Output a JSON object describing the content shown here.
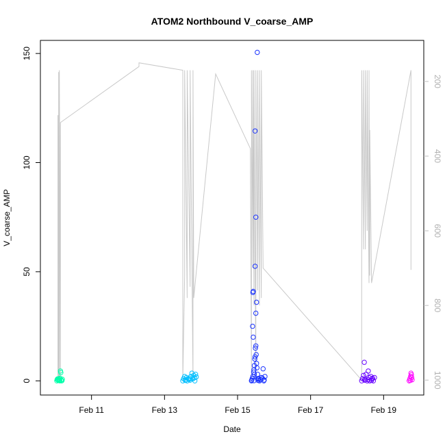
{
  "chart_data": {
    "type": "scatter",
    "title": "ATOM2 Northbound V_coarse_AMP",
    "xlabel": "Date",
    "ylabel": "V_coarse_AMP",
    "x_tick_labels": [
      "Feb 11",
      "Feb 13",
      "Feb 15",
      "Feb 17",
      "Feb 19"
    ],
    "x_tick_days": [
      11,
      13,
      15,
      17,
      19
    ],
    "xlim_days": [
      9.6,
      20.1
    ],
    "y_ticks": [
      0,
      50,
      100,
      150
    ],
    "ylim": [
      -6.5,
      156
    ],
    "right_axis": {
      "reversed": true,
      "ticks": [
        200,
        400,
        600,
        800,
        1000
      ],
      "range": [
        1040,
        90
      ],
      "color": "#bebebe"
    },
    "colors": {
      "axis": "#000000",
      "pressure_line": "#c8c8c8",
      "right_axis_text": "#b0b0b0"
    },
    "pressure_line": [
      [
        10.08,
        1000
      ],
      [
        10.08,
        290
      ],
      [
        10.1,
        1000
      ],
      [
        10.1,
        175
      ],
      [
        10.12,
        990
      ],
      [
        10.12,
        170
      ],
      [
        10.15,
        1000
      ],
      [
        10.15,
        310
      ],
      [
        12.3,
        160
      ],
      [
        12.3,
        150
      ],
      [
        13.5,
        170
      ],
      [
        13.5,
        1000
      ],
      [
        13.55,
        720
      ],
      [
        13.55,
        170
      ],
      [
        13.62,
        780
      ],
      [
        13.62,
        170
      ],
      [
        13.7,
        750
      ],
      [
        13.7,
        170
      ],
      [
        13.78,
        1000
      ],
      [
        13.78,
        170
      ],
      [
        13.8,
        780
      ],
      [
        14.4,
        180
      ],
      [
        15.35,
        380
      ],
      [
        15.38,
        1000
      ],
      [
        15.38,
        170
      ],
      [
        15.42,
        700
      ],
      [
        15.42,
        170
      ],
      [
        15.45,
        800
      ],
      [
        15.45,
        170
      ],
      [
        15.5,
        1000
      ],
      [
        15.5,
        170
      ],
      [
        15.55,
        760
      ],
      [
        15.55,
        170
      ],
      [
        15.6,
        800
      ],
      [
        15.6,
        170
      ],
      [
        15.65,
        780
      ],
      [
        15.65,
        170
      ],
      [
        15.7,
        700
      ],
      [
        18.4,
        1000
      ],
      [
        18.4,
        170
      ],
      [
        18.45,
        650
      ],
      [
        18.45,
        170
      ],
      [
        18.5,
        650
      ],
      [
        18.5,
        170
      ],
      [
        18.55,
        600
      ],
      [
        18.55,
        170
      ],
      [
        18.6,
        740
      ],
      [
        18.6,
        170
      ],
      [
        18.62,
        720
      ],
      [
        18.62,
        330
      ],
      [
        18.67,
        740
      ],
      [
        19.75,
        170
      ],
      [
        19.75,
        705
      ]
    ],
    "series": [
      {
        "color": "#00ffaa",
        "points": [
          [
            10.05,
            0
          ],
          [
            10.08,
            0.5
          ],
          [
            10.1,
            1
          ],
          [
            10.12,
            0.3
          ],
          [
            10.14,
            1.2
          ],
          [
            10.15,
            4.5
          ],
          [
            10.16,
            3.8
          ],
          [
            10.18,
            0
          ],
          [
            10.2,
            0.7
          ],
          [
            10.09,
            0.2
          ],
          [
            10.11,
            0.8
          ],
          [
            10.13,
            0
          ],
          [
            10.17,
            0.4
          ],
          [
            10.06,
            0.6
          ],
          [
            10.19,
            0.1
          ],
          [
            10.07,
            0.9
          ]
        ]
      },
      {
        "color": "#00bfff",
        "points": [
          [
            13.5,
            0
          ],
          [
            13.52,
            1
          ],
          [
            13.55,
            2
          ],
          [
            13.58,
            0.5
          ],
          [
            13.6,
            1.5
          ],
          [
            13.62,
            0
          ],
          [
            13.65,
            0.8
          ],
          [
            13.68,
            1.2
          ],
          [
            13.7,
            0.3
          ],
          [
            13.72,
            2
          ],
          [
            13.75,
            3.5
          ],
          [
            13.78,
            1
          ],
          [
            13.8,
            2.5
          ],
          [
            13.83,
            0
          ],
          [
            13.85,
            3
          ],
          [
            13.87,
            1.8
          ],
          [
            13.57,
            0.2
          ],
          [
            13.67,
            0.6
          ],
          [
            13.77,
            0.9
          ],
          [
            13.82,
            1.4
          ]
        ]
      },
      {
        "color": "#1a33ff",
        "points": [
          [
            15.38,
            0
          ],
          [
            15.4,
            1
          ],
          [
            15.42,
            2
          ],
          [
            15.44,
            4
          ],
          [
            15.45,
            5
          ],
          [
            15.46,
            7
          ],
          [
            15.47,
            10
          ],
          [
            15.48,
            11
          ],
          [
            15.49,
            15
          ],
          [
            15.5,
            16
          ],
          [
            15.43,
            20
          ],
          [
            15.41,
            25
          ],
          [
            15.5,
            31
          ],
          [
            15.52,
            36
          ],
          [
            15.42,
            40.5
          ],
          [
            15.43,
            41
          ],
          [
            15.48,
            52.5
          ],
          [
            15.5,
            75
          ],
          [
            15.48,
            114.5
          ],
          [
            15.54,
            150.5
          ],
          [
            15.53,
            6
          ],
          [
            15.55,
            3
          ],
          [
            15.57,
            1
          ],
          [
            15.6,
            0
          ],
          [
            15.62,
            0.5
          ],
          [
            15.65,
            1.5
          ],
          [
            15.7,
            5.5
          ],
          [
            15.72,
            0
          ],
          [
            15.75,
            2
          ],
          [
            15.58,
            0.8
          ],
          [
            15.51,
            12
          ],
          [
            15.46,
            3
          ],
          [
            15.52,
            8
          ],
          [
            15.39,
            0.3
          ],
          [
            15.56,
            0.2
          ],
          [
            15.63,
            0.6
          ],
          [
            15.68,
            1.2
          ],
          [
            15.73,
            0.4
          ],
          [
            15.45,
            0.1
          ],
          [
            15.55,
            0.9
          ]
        ]
      },
      {
        "color": "#6600ff",
        "points": [
          [
            18.4,
            0
          ],
          [
            18.42,
            1
          ],
          [
            18.45,
            2.5
          ],
          [
            18.47,
            8.5
          ],
          [
            18.5,
            0.5
          ],
          [
            18.52,
            3
          ],
          [
            18.55,
            0
          ],
          [
            18.58,
            4.5
          ],
          [
            18.6,
            1.5
          ],
          [
            18.62,
            0
          ],
          [
            18.65,
            2
          ],
          [
            18.68,
            0.8
          ],
          [
            18.7,
            1.2
          ],
          [
            18.72,
            0
          ],
          [
            18.75,
            1.5
          ],
          [
            18.48,
            0.3
          ],
          [
            18.57,
            0.6
          ],
          [
            18.67,
            0.2
          ]
        ]
      },
      {
        "color": "#ff00ff",
        "points": [
          [
            19.7,
            0
          ],
          [
            19.72,
            1
          ],
          [
            19.74,
            2
          ],
          [
            19.75,
            3.5
          ],
          [
            19.76,
            2.8
          ],
          [
            19.78,
            0.5
          ],
          [
            19.73,
            0.2
          ],
          [
            19.77,
            1.5
          ]
        ]
      }
    ]
  }
}
